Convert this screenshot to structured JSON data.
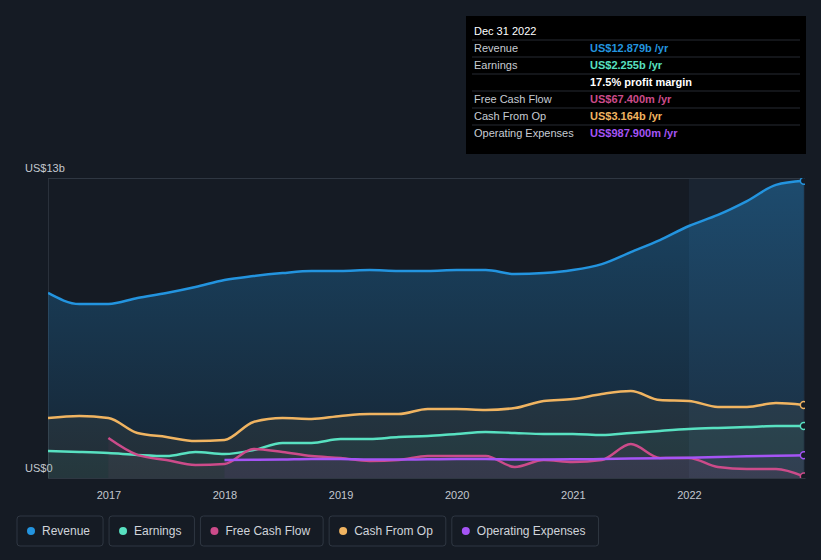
{
  "chart_data": {
    "type": "line",
    "x": [
      2016.48,
      2016.75,
      2017.0,
      2017.25,
      2017.5,
      2017.75,
      2018.0,
      2018.25,
      2018.5,
      2018.75,
      2019.0,
      2019.25,
      2019.5,
      2019.75,
      2020.0,
      2020.25,
      2020.5,
      2020.75,
      2021.0,
      2021.25,
      2021.5,
      2021.75,
      2022.0,
      2022.25,
      2022.5,
      2022.75,
      2022.99
    ],
    "series": [
      {
        "name": "Revenue",
        "color": "#2394df",
        "values": [
          8.02,
          7.54,
          7.54,
          7.8,
          8.02,
          8.28,
          8.58,
          8.75,
          8.88,
          8.97,
          8.97,
          9.01,
          8.97,
          8.97,
          9.01,
          9.01,
          8.84,
          8.88,
          9.01,
          9.27,
          9.79,
          10.31,
          10.92,
          11.4,
          12.0,
          12.7,
          12.879
        ]
      },
      {
        "name": "Earnings",
        "color": "#58e1c1",
        "values": [
          1.17,
          1.13,
          1.08,
          1.0,
          0.95,
          1.13,
          1.04,
          1.21,
          1.52,
          1.52,
          1.69,
          1.69,
          1.78,
          1.82,
          1.91,
          1.99,
          1.95,
          1.91,
          1.91,
          1.86,
          1.95,
          2.04,
          2.12,
          2.17,
          2.21,
          2.25,
          2.255
        ]
      },
      {
        "name": "Free Cash Flow",
        "color": "#cc4b8a",
        "values": [
          null,
          null,
          1.73,
          1.0,
          0.78,
          0.56,
          0.61,
          1.26,
          1.13,
          0.95,
          0.87,
          0.74,
          0.78,
          0.95,
          0.95,
          0.95,
          0.48,
          0.78,
          0.69,
          0.78,
          1.47,
          0.87,
          0.87,
          0.48,
          0.39,
          0.39,
          0.0674
        ]
      },
      {
        "name": "Cash From Op",
        "color": "#f0b461",
        "values": [
          2.6,
          2.69,
          2.6,
          1.95,
          1.78,
          1.6,
          1.65,
          2.43,
          2.6,
          2.56,
          2.69,
          2.77,
          2.77,
          2.99,
          2.99,
          2.95,
          3.03,
          3.34,
          3.42,
          3.64,
          3.77,
          3.38,
          3.34,
          3.08,
          3.08,
          3.25,
          3.164
        ]
      },
      {
        "name": "Operating Expenses",
        "color": "#a554f5",
        "values": [
          null,
          null,
          null,
          null,
          null,
          null,
          0.78,
          0.79,
          0.8,
          0.82,
          0.82,
          0.8,
          0.8,
          0.81,
          0.82,
          0.82,
          0.8,
          0.8,
          0.81,
          0.82,
          0.84,
          0.86,
          0.88,
          0.91,
          0.94,
          0.96,
          0.988
        ]
      }
    ],
    "xlim": [
      2016.48,
      2023.0
    ],
    "xticks": [
      2017,
      2018,
      2019,
      2020,
      2021,
      2022
    ],
    "ylim": [
      0,
      13
    ],
    "yticks": [
      {
        "value": 0,
        "label": "US$0"
      },
      {
        "value": 13,
        "label": "US$13b"
      }
    ],
    "grid": true,
    "legend": "bottom",
    "tooltip": {
      "title": "Dec 31 2022",
      "rows": [
        {
          "label": "Revenue",
          "value": "US$12.879b /yr"
        },
        {
          "label": "Earnings",
          "value": "US$2.255b /yr"
        },
        {
          "value": "17.5% profit margin"
        },
        {
          "label": "Free Cash Flow",
          "value": "US$67.400m /yr"
        },
        {
          "label": "Cash From Op",
          "value": "US$3.164b /yr"
        },
        {
          "label": "Operating Expenses",
          "value": "US$987.900m /yr"
        }
      ]
    }
  }
}
